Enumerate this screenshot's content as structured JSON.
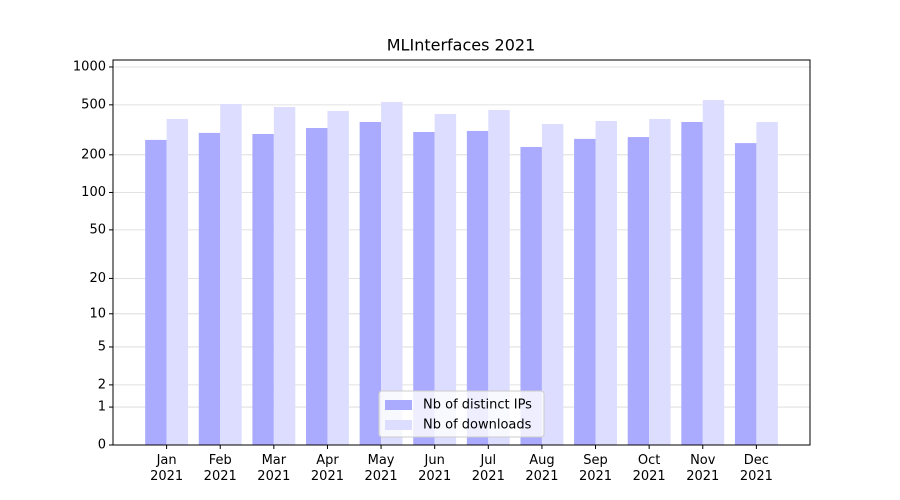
{
  "chart_data": {
    "type": "bar",
    "title": "MLInterfaces 2021",
    "categories": [
      "Jan\n2021",
      "Feb\n2021",
      "Mar\n2021",
      "Apr\n2021",
      "May\n2021",
      "Jun\n2021",
      "Jul\n2021",
      "Aug\n2021",
      "Sep\n2021",
      "Oct\n2021",
      "Nov\n2021",
      "Dec\n2021"
    ],
    "series": [
      {
        "name": "Nb of distinct IPs",
        "color": "#aaaaff",
        "values": [
          263,
          299,
          293,
          327,
          365,
          304,
          310,
          231,
          268,
          277,
          365,
          248
        ]
      },
      {
        "name": "Nb of downloads",
        "color": "#ddddff",
        "values": [
          386,
          508,
          481,
          447,
          527,
          423,
          455,
          352,
          372,
          386,
          546,
          365
        ]
      }
    ],
    "yscale": "log1p",
    "ylim": [
      0,
      1136
    ],
    "yticks": [
      0,
      1,
      2,
      5,
      10,
      20,
      50,
      100,
      200,
      500,
      1000
    ],
    "grid": true,
    "legend": "lower center"
  }
}
